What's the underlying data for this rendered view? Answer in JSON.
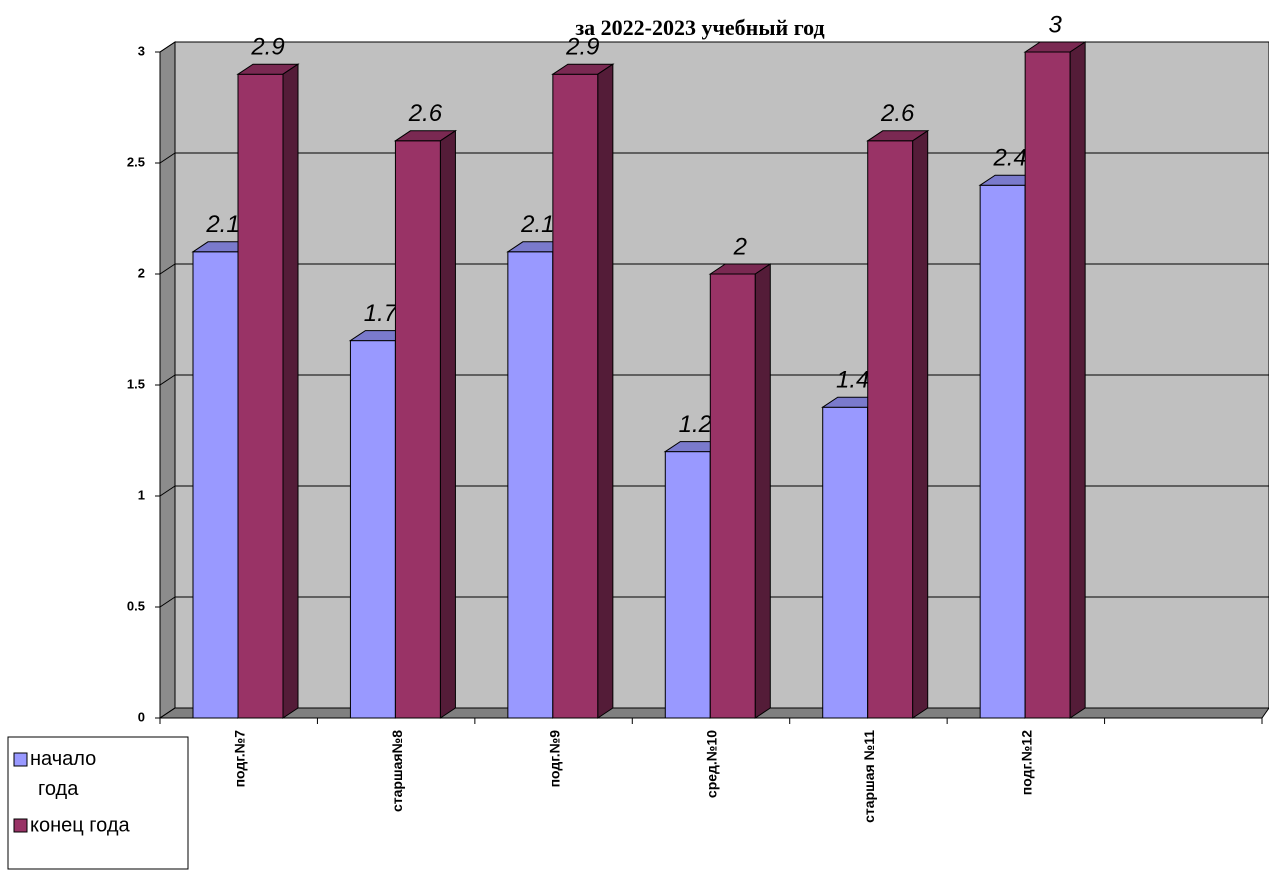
{
  "chart_data": {
    "type": "bar3d",
    "title": "за 2022-2023 учебный год",
    "categories": [
      "подг.№7",
      "старшая№8",
      "подг.№9",
      "сред.№10",
      "старшая №11",
      "подг.№12",
      null
    ],
    "series": [
      {
        "name": "начало года",
        "color": "#9999ff",
        "values": [
          2.1,
          1.7,
          2.1,
          1.2,
          1.4,
          2.4,
          null
        ]
      },
      {
        "name": "конец года",
        "color": "#993366",
        "values": [
          2.9,
          2.6,
          2.9,
          2,
          2.6,
          3,
          null
        ]
      }
    ],
    "ylim": [
      0,
      3
    ],
    "yticks": [
      0,
      0.5,
      1,
      1.5,
      2,
      2.5,
      3
    ],
    "grid": true,
    "legend": "bottom-left"
  }
}
